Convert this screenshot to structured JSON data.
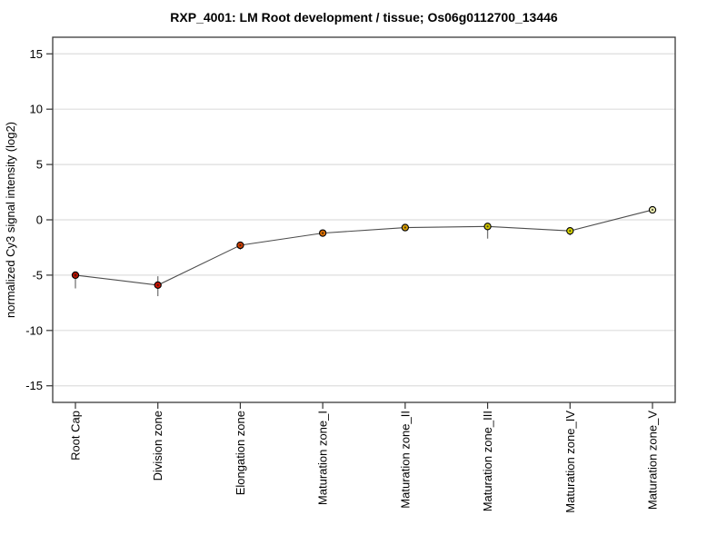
{
  "chart_data": {
    "type": "line",
    "title": "RXP_4001: LM Root development / tissue; Os06g0112700_13446",
    "ylabel": "normalized Cy3 signal intensity (log2)",
    "xlabel": "",
    "categories": [
      "Root Cap",
      "Division zone",
      "Elongation zone",
      "Maturation zone_I",
      "Maturation zone_II",
      "Maturation zone_III",
      "Maturation zone_IV",
      "Maturation zone_V"
    ],
    "values": [
      -5.0,
      -5.9,
      -2.3,
      -1.2,
      -0.7,
      -0.6,
      -1.0,
      0.9
    ],
    "error_low": [
      -6.2,
      -6.9,
      -2.7,
      -1.5,
      -1.0,
      -1.7,
      -1.4,
      0.6
    ],
    "error_high": [
      -4.8,
      -5.1,
      -2.1,
      -0.9,
      -0.5,
      -0.4,
      -0.8,
      1.2
    ],
    "point_colors": [
      "#b31200",
      "#cc1400",
      "#d24000",
      "#dd7000",
      "#d89e00",
      "#cfc400",
      "#d6d400",
      "#e9e9ad"
    ],
    "yticks": [
      15,
      10,
      5,
      0,
      -5,
      -10,
      -15
    ],
    "ylim": [
      -16.5,
      16.5
    ],
    "grid": true,
    "legend": "none",
    "colors": {
      "line": "#4d4d4d",
      "errorbar": "#777777",
      "marker_outline": "#000000",
      "marker_center_dot": "#1a1a1a",
      "grid": "#dedede",
      "box": "#3a3a3a",
      "tick": "#333333",
      "background": "#ffffff"
    }
  }
}
